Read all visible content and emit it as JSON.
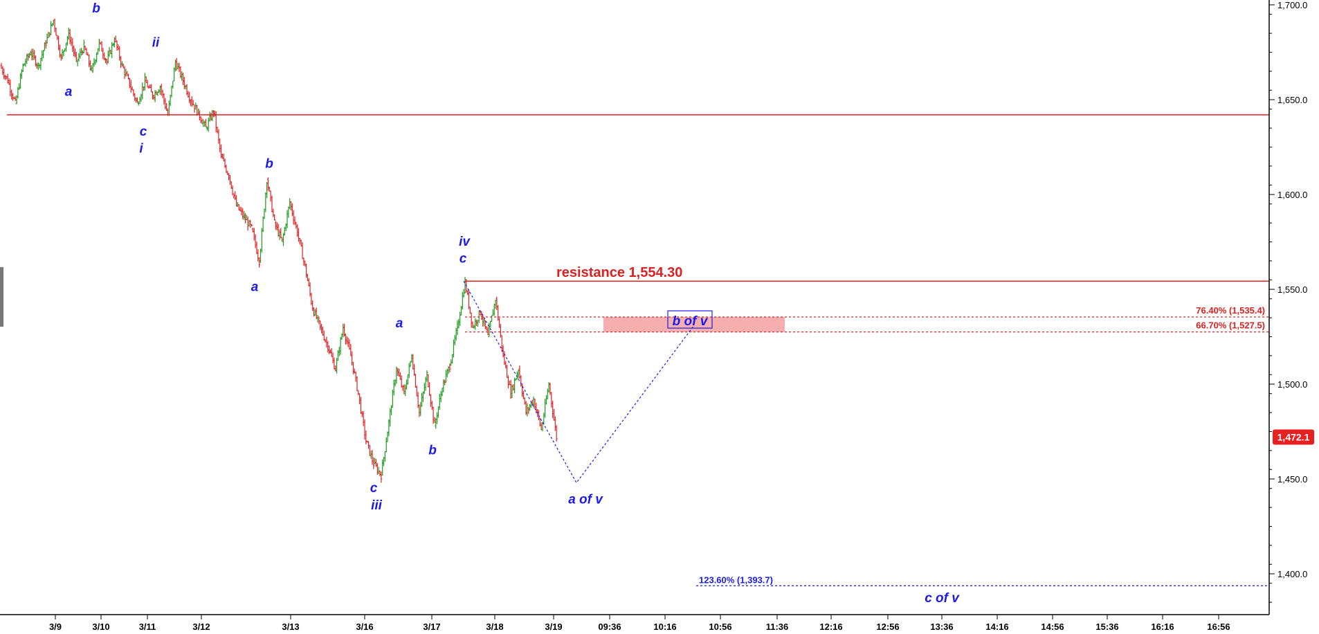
{
  "chart_data": {
    "type": "candlestick",
    "title": "",
    "ylim": [
      1385,
      1700
    ],
    "y_ticks": [
      "1,700.0",
      "1,650.0",
      "1,600.0",
      "1,550.0",
      "1,500.0",
      "1,450.0",
      "1,400.0"
    ],
    "y_tick_values": [
      1700,
      1650,
      1600,
      1550,
      1500,
      1450,
      1400
    ],
    "x_ticks": [
      "3/9",
      "3/10",
      "3/11",
      "3/12",
      "3/13",
      "3/16",
      "3/17",
      "3/18",
      "3/19",
      "09:36",
      "10:16",
      "10:56",
      "11:36",
      "12:16",
      "12:56",
      "13:36",
      "14:16",
      "14:56",
      "15:36",
      "16:16",
      "16:56"
    ],
    "last_price": "1,472.1",
    "last_price_value": 1472.1,
    "price_path": [
      [
        1668,
        1660
      ],
      [
        1660,
        1648
      ],
      [
        1648,
        1668
      ],
      [
        1668,
        1675
      ],
      [
        1675,
        1668
      ],
      [
        1668,
        1680
      ],
      [
        1680,
        1692
      ],
      [
        1692,
        1672
      ],
      [
        1672,
        1685
      ],
      [
        1685,
        1670
      ],
      [
        1670,
        1678
      ],
      [
        1678,
        1665
      ],
      [
        1665,
        1680
      ],
      [
        1680,
        1670
      ],
      [
        1670,
        1682
      ],
      [
        1682,
        1668
      ],
      [
        1668,
        1658
      ],
      [
        1658,
        1648
      ],
      [
        1648,
        1660
      ],
      [
        1660,
        1652
      ],
      [
        1652,
        1657
      ],
      [
        1657,
        1642
      ],
      [
        1642,
        1670
      ],
      [
        1670,
        1660
      ],
      [
        1660,
        1650
      ],
      [
        1650,
        1643
      ],
      [
        1643,
        1635
      ],
      [
        1635,
        1644
      ],
      [
        1644,
        1620
      ],
      [
        1620,
        1610
      ],
      [
        1610,
        1594
      ],
      [
        1594,
        1588
      ],
      [
        1588,
        1582
      ],
      [
        1582,
        1565
      ],
      [
        1565,
        1608
      ],
      [
        1608,
        1585
      ],
      [
        1585,
        1575
      ],
      [
        1575,
        1596
      ],
      [
        1596,
        1580
      ],
      [
        1580,
        1562
      ],
      [
        1562,
        1540
      ],
      [
        1540,
        1530
      ],
      [
        1530,
        1520
      ],
      [
        1520,
        1508
      ],
      [
        1508,
        1530
      ],
      [
        1530,
        1515
      ],
      [
        1515,
        1495
      ],
      [
        1495,
        1470
      ],
      [
        1470,
        1458
      ],
      [
        1458,
        1452
      ],
      [
        1452,
        1480
      ],
      [
        1480,
        1508
      ],
      [
        1508,
        1495
      ],
      [
        1495,
        1515
      ],
      [
        1515,
        1485
      ],
      [
        1485,
        1505
      ],
      [
        1505,
        1478
      ],
      [
        1478,
        1498
      ],
      [
        1498,
        1510
      ],
      [
        1510,
        1530
      ],
      [
        1530,
        1554
      ],
      [
        1554,
        1530
      ],
      [
        1530,
        1538
      ],
      [
        1538,
        1525
      ],
      [
        1525,
        1545
      ],
      [
        1545,
        1515
      ],
      [
        1515,
        1495
      ],
      [
        1495,
        1508
      ],
      [
        1508,
        1485
      ],
      [
        1485,
        1492
      ],
      [
        1492,
        1476
      ],
      [
        1476,
        1500
      ],
      [
        1500,
        1472
      ]
    ],
    "resistance": {
      "label": "resistance 1,554.30",
      "value": 1554.3
    },
    "support_line": {
      "value": 1642
    },
    "fib_levels": [
      {
        "label": "76.40% (1,535.4)",
        "value": 1535.4,
        "color": "#e02020"
      },
      {
        "label": "66.70% (1,527.5)",
        "value": 1527.5,
        "color": "#e02020"
      },
      {
        "label": "123.60% (1,393.7)",
        "value": 1393.7,
        "color": "#1a1aee"
      }
    ],
    "target_zone": {
      "from": 1527.5,
      "to": 1535.4
    },
    "projection": [
      {
        "x_label": "3/17",
        "value": 1554.3
      },
      {
        "x_label": "09:36",
        "value": 1448
      },
      {
        "x_label": "10:56",
        "value": 1531
      }
    ],
    "wave_labels": [
      {
        "text": "b",
        "near": "3/10",
        "value": 1696
      },
      {
        "text": "a",
        "near": "3/9",
        "value": 1652
      },
      {
        "text": "ii",
        "near": "3/11",
        "value": 1678
      },
      {
        "text": "c",
        "near": "3/11",
        "value": 1631
      },
      {
        "text": "i",
        "near": "3/11",
        "value": 1622
      },
      {
        "text": "b",
        "near": "3/13",
        "value": 1614
      },
      {
        "text": "a",
        "near": "3/13",
        "value": 1549
      },
      {
        "text": "iv",
        "near": "3/17",
        "value": 1573
      },
      {
        "text": "c",
        "near": "3/17",
        "value": 1564
      },
      {
        "text": "a",
        "near": "3/16",
        "value": 1530
      },
      {
        "text": "b",
        "near": "3/17",
        "value": 1463
      },
      {
        "text": "c",
        "near": "3/16",
        "value": 1443
      },
      {
        "text": "iii",
        "near": "3/16",
        "value": 1434
      },
      {
        "text": "a of v",
        "near": "09:36",
        "value": 1437
      },
      {
        "text": "b of v",
        "near": "10:56",
        "value": 1531
      },
      {
        "text": "c of v",
        "near": "13:36",
        "value": 1385
      }
    ]
  }
}
